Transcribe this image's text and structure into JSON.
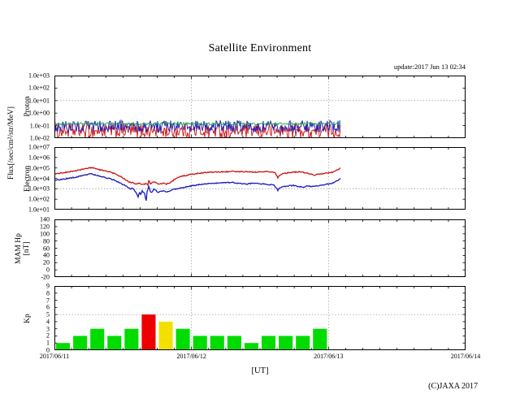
{
  "title": "Satellite Environment",
  "update_text": "update:2017 Jun 13 02:34",
  "footer": {
    "xlabel": "[UT]",
    "copyright": "(C)JAXA 2017"
  },
  "axes": {
    "flux_label": "Flux[/sec/cm²/str/MeV]",
    "proton_label": "Proton",
    "electron_label": "Electron",
    "mam_label_line1": "MAM Hp",
    "mam_label_line2": "[nT]",
    "kp_label": "Kp"
  },
  "x_axis": {
    "labels": [
      "2017/06/11",
      "2017/06/12",
      "2017/06/13",
      "2017/06/14"
    ],
    "days_shown": 3,
    "minor_ticks_per_day": 8
  },
  "colors": {
    "line_red": "#cc1111",
    "line_blue": "#1818bb",
    "line_green": "#18a838",
    "kp_green": "#00dc00",
    "kp_yellow": "#f2e000",
    "kp_red": "#ee0000",
    "grid": "#888888",
    "axis": "#000000"
  },
  "chart_data": [
    {
      "name": "proton-flux",
      "type": "line-noise",
      "panel_label": "Proton",
      "scale": "log",
      "ylim_log": [
        -2,
        3
      ],
      "yticks": [
        {
          "label": "1.0e+03",
          "value": 3
        },
        {
          "label": "1.0e+02",
          "value": 2
        },
        {
          "label": "1.0e+01",
          "value": 1
        },
        {
          "label": "1.0e+00",
          "value": 0
        },
        {
          "label": "1.0e-01",
          "value": -1
        },
        {
          "label": "1.0e-02",
          "value": -2
        }
      ],
      "threshold_value": 1,
      "data_start_day": 0,
      "data_end_day": 2.09,
      "noise_bands": [
        {
          "series": "proton-red",
          "color_key": "line_red",
          "min_log": -2.0,
          "max_log": -0.85
        },
        {
          "series": "proton-blue",
          "color_key": "line_blue",
          "min_log": -1.55,
          "max_log": -0.58
        },
        {
          "series": "proton-green",
          "color_key": "line_green",
          "min_log": -0.95,
          "max_log": -0.76
        }
      ]
    },
    {
      "name": "electron-flux",
      "type": "line",
      "panel_label": "Electron",
      "scale": "log",
      "ylim_log": [
        1,
        7
      ],
      "yticks": [
        {
          "label": "1.0e+07",
          "value": 7
        },
        {
          "label": "1.0e+06",
          "value": 6
        },
        {
          "label": "1.0e+05",
          "value": 5
        },
        {
          "label": "1.0e+04",
          "value": 4
        },
        {
          "label": "1.0e+03",
          "value": 3
        },
        {
          "label": "1.0e+02",
          "value": 2
        },
        {
          "label": "1.0e+01",
          "value": 1
        }
      ],
      "threshold_value": 3,
      "data_start_day": 0,
      "data_end_day": 2.09,
      "series": [
        {
          "series": "electron-red",
          "color_key": "line_red",
          "points_day_log10": [
            [
              0,
              4.42
            ],
            [
              0.05,
              4.52
            ],
            [
              0.1,
              4.62
            ],
            [
              0.15,
              4.72
            ],
            [
              0.2,
              4.85
            ],
            [
              0.25,
              5.0
            ],
            [
              0.27,
              5.05
            ],
            [
              0.29,
              4.95
            ],
            [
              0.33,
              4.82
            ],
            [
              0.38,
              4.7
            ],
            [
              0.42,
              4.55
            ],
            [
              0.45,
              4.42
            ],
            [
              0.48,
              4.2
            ],
            [
              0.5,
              4.05
            ],
            [
              0.53,
              3.78
            ],
            [
              0.555,
              3.6
            ],
            [
              0.57,
              3.62
            ],
            [
              0.585,
              3.5
            ],
            [
              0.6,
              3.45
            ],
            [
              0.615,
              3.55
            ],
            [
              0.63,
              3.42
            ],
            [
              0.645,
              3.48
            ],
            [
              0.66,
              3.45
            ],
            [
              0.67,
              3.5
            ],
            [
              0.682,
              3.42
            ],
            [
              0.69,
              3.95
            ],
            [
              0.698,
              3.5
            ],
            [
              0.71,
              3.55
            ],
            [
              0.725,
              3.68
            ],
            [
              0.74,
              3.58
            ],
            [
              0.755,
              3.45
            ],
            [
              0.77,
              3.52
            ],
            [
              0.785,
              3.48
            ],
            [
              0.8,
              3.55
            ],
            [
              0.815,
              3.45
            ],
            [
              0.83,
              3.52
            ],
            [
              0.85,
              3.62
            ],
            [
              0.865,
              3.78
            ],
            [
              0.88,
              3.95
            ],
            [
              0.9,
              4.08
            ],
            [
              0.93,
              4.2
            ],
            [
              0.97,
              4.3
            ],
            [
              1.0,
              4.38
            ],
            [
              1.05,
              4.48
            ],
            [
              1.1,
              4.55
            ],
            [
              1.2,
              4.62
            ],
            [
              1.3,
              4.65
            ],
            [
              1.4,
              4.62
            ],
            [
              1.5,
              4.6
            ],
            [
              1.55,
              4.65
            ],
            [
              1.6,
              4.6
            ],
            [
              1.615,
              4.45
            ],
            [
              1.63,
              4.05
            ],
            [
              1.645,
              4.3
            ],
            [
              1.67,
              4.45
            ],
            [
              1.7,
              4.52
            ],
            [
              1.75,
              4.6
            ],
            [
              1.8,
              4.62
            ],
            [
              1.83,
              4.55
            ],
            [
              1.86,
              4.42
            ],
            [
              1.88,
              4.35
            ],
            [
              1.9,
              4.32
            ],
            [
              1.93,
              4.4
            ],
            [
              1.96,
              4.45
            ],
            [
              2.0,
              4.52
            ],
            [
              2.03,
              4.6
            ],
            [
              2.06,
              4.78
            ],
            [
              2.09,
              5.0
            ]
          ]
        },
        {
          "series": "electron-blue",
          "color_key": "line_blue",
          "points_day_log10": [
            [
              0,
              3.8
            ],
            [
              0.05,
              3.9
            ],
            [
              0.1,
              4.0
            ],
            [
              0.15,
              4.1
            ],
            [
              0.2,
              4.25
            ],
            [
              0.25,
              4.4
            ],
            [
              0.27,
              4.45
            ],
            [
              0.29,
              4.35
            ],
            [
              0.33,
              4.2
            ],
            [
              0.38,
              4.05
            ],
            [
              0.42,
              3.9
            ],
            [
              0.45,
              3.75
            ],
            [
              0.48,
              3.55
            ],
            [
              0.5,
              3.4
            ],
            [
              0.52,
              3.3
            ],
            [
              0.54,
              3.1
            ],
            [
              0.555,
              3.0
            ],
            [
              0.57,
              3.05
            ],
            [
              0.585,
              2.85
            ],
            [
              0.6,
              2.55
            ],
            [
              0.61,
              2.2
            ],
            [
              0.62,
              2.75
            ],
            [
              0.63,
              2.35
            ],
            [
              0.64,
              2.8
            ],
            [
              0.65,
              2.7
            ],
            [
              0.66,
              2.55
            ],
            [
              0.668,
              1.65
            ],
            [
              0.676,
              2.7
            ],
            [
              0.684,
              3.0
            ],
            [
              0.69,
              3.3
            ],
            [
              0.698,
              2.8
            ],
            [
              0.71,
              2.65
            ],
            [
              0.725,
              2.95
            ],
            [
              0.74,
              2.85
            ],
            [
              0.755,
              2.6
            ],
            [
              0.77,
              2.7
            ],
            [
              0.785,
              2.78
            ],
            [
              0.8,
              2.85
            ],
            [
              0.815,
              2.65
            ],
            [
              0.83,
              2.75
            ],
            [
              0.85,
              2.85
            ],
            [
              0.87,
              2.95
            ],
            [
              0.9,
              3.02
            ],
            [
              0.93,
              3.1
            ],
            [
              0.97,
              3.2
            ],
            [
              1.0,
              3.28
            ],
            [
              1.05,
              3.38
            ],
            [
              1.1,
              3.45
            ],
            [
              1.2,
              3.55
            ],
            [
              1.3,
              3.6
            ],
            [
              1.35,
              3.5
            ],
            [
              1.4,
              3.45
            ],
            [
              1.45,
              3.55
            ],
            [
              1.5,
              3.5
            ],
            [
              1.55,
              3.42
            ],
            [
              1.6,
              3.38
            ],
            [
              1.615,
              3.15
            ],
            [
              1.63,
              2.85
            ],
            [
              1.645,
              3.1
            ],
            [
              1.67,
              3.2
            ],
            [
              1.7,
              3.28
            ],
            [
              1.75,
              3.32
            ],
            [
              1.78,
              3.22
            ],
            [
              1.82,
              3.15
            ],
            [
              1.85,
              3.3
            ],
            [
              1.88,
              3.2
            ],
            [
              1.92,
              3.3
            ],
            [
              1.96,
              3.38
            ],
            [
              2.0,
              3.45
            ],
            [
              2.03,
              3.55
            ],
            [
              2.06,
              3.75
            ],
            [
              2.09,
              4.0
            ]
          ]
        }
      ]
    },
    {
      "name": "mam-hp",
      "type": "line",
      "panel_label": "MAM Hp [nT]",
      "scale": "linear",
      "ylim": [
        -20,
        140
      ],
      "yticks": [
        {
          "label": "140",
          "value": 140
        },
        {
          "label": "120",
          "value": 120
        },
        {
          "label": "100",
          "value": 100
        },
        {
          "label": "80",
          "value": 80
        },
        {
          "label": "60",
          "value": 60
        },
        {
          "label": "40",
          "value": 40
        },
        {
          "label": "20",
          "value": 20
        },
        {
          "label": "0",
          "value": 0
        },
        {
          "label": "-20",
          "value": -20
        }
      ],
      "threshold_value": null,
      "series": []
    },
    {
      "name": "kp-index",
      "type": "bar",
      "panel_label": "Kp",
      "scale": "linear",
      "ylim": [
        0,
        9
      ],
      "yticks": [
        {
          "label": "9",
          "value": 9
        },
        {
          "label": "8",
          "value": 8
        },
        {
          "label": "7",
          "value": 7
        },
        {
          "label": "6",
          "value": 6
        },
        {
          "label": "5",
          "value": 5
        },
        {
          "label": "4",
          "value": 4
        },
        {
          "label": "3",
          "value": 3
        },
        {
          "label": "2",
          "value": 2
        },
        {
          "label": "1",
          "value": 1
        },
        {
          "label": "0",
          "value": 0
        }
      ],
      "threshold_value": 5,
      "bars_per_day": 8,
      "values": [
        1,
        2,
        3,
        2,
        3,
        5,
        4,
        3,
        2,
        2,
        2,
        1,
        2,
        2,
        2,
        3
      ],
      "bar_colors": [
        "green",
        "green",
        "green",
        "green",
        "green",
        "red",
        "yellow",
        "green",
        "green",
        "green",
        "green",
        "green",
        "green",
        "green",
        "green",
        "green"
      ]
    }
  ]
}
